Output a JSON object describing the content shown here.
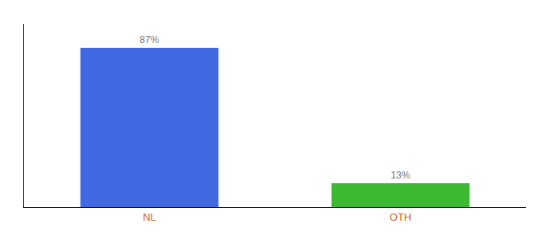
{
  "chart_data": {
    "type": "bar",
    "categories": [
      "NL",
      "OTH"
    ],
    "values": [
      87,
      13
    ],
    "value_labels": [
      "87%",
      "13%"
    ],
    "colors": [
      "#4169E1",
      "#3CB832"
    ],
    "ylim": [
      0,
      100
    ],
    "yticks": [],
    "data_labels": true,
    "tick_labels": "x",
    "grid": false
  }
}
